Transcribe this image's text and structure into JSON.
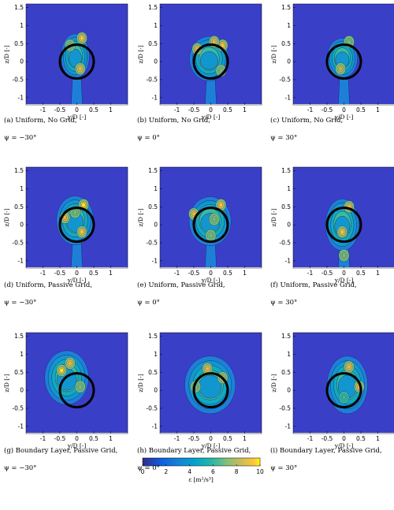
{
  "panels": [
    {
      "id": "a",
      "caption_line1": "(a) Uniform, No Grid,",
      "caption_line2": "ψ = −30°"
    },
    {
      "id": "b",
      "caption_line1": "(b) Uniform, No Grid,",
      "caption_line2": "ψ = 0°"
    },
    {
      "id": "c",
      "caption_line1": "(c) Uniform, No Grid,",
      "caption_line2": "ψ = 30°"
    },
    {
      "id": "d",
      "caption_line1": "(d) Uniform, Passive Grid,",
      "caption_line2": "ψ = −30°"
    },
    {
      "id": "e",
      "caption_line1": "(e) Uniform, Passive Grid,",
      "caption_line2": "ψ = 0°"
    },
    {
      "id": "f",
      "caption_line1": "(f) Uniform, Passive Grid,",
      "caption_line2": "ψ = 30°"
    },
    {
      "id": "g",
      "caption_line1": "(g) Boundary Layer, Passive Grid,",
      "caption_line2": "ψ = −30°"
    },
    {
      "id": "h",
      "caption_line1": "(h) Boundary Layer, Passive Grid,",
      "caption_line2": "ψ = 0°"
    },
    {
      "id": "i",
      "caption_line1": "(i) Boundary Layer, Passive Grid,",
      "caption_line2": "ψ = 30°"
    }
  ],
  "colors": {
    "background": "#3a3fc8",
    "rotor": "#000000"
  },
  "chart_data": {
    "type": "heatmap",
    "xlabel": "y/D [-]",
    "ylabel": "z/D [-]",
    "xlim": [
      -1.5,
      1.5
    ],
    "ylim": [
      -1.2,
      1.6
    ],
    "xticks": [
      "-1",
      "-0.5",
      "0",
      "0.5",
      "1"
    ],
    "yticks": [
      "1.5",
      "1",
      "0.5",
      "0",
      "-0.5",
      "-1"
    ],
    "rotor_diameter": 1,
    "colorbar": {
      "label": "ε [m²/s³]",
      "ticks": [
        "0",
        "2",
        "4",
        "6",
        "8",
        "10"
      ],
      "range": [
        0,
        10
      ],
      "colormap": "parula"
    }
  }
}
